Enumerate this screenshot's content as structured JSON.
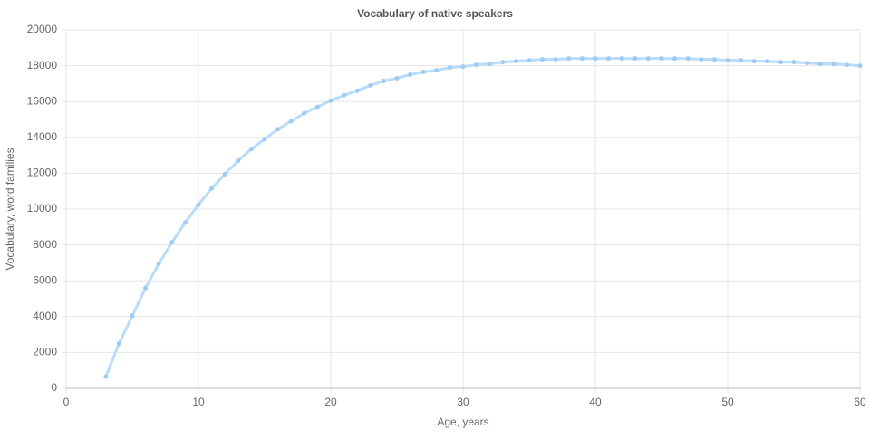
{
  "chart_data": {
    "type": "line",
    "title": "Vocabulary of native speakers",
    "x_label": "Age, years",
    "y_label": "Vocabulary, word families",
    "x": [
      3,
      4,
      5,
      6,
      7,
      8,
      9,
      10,
      11,
      12,
      13,
      14,
      15,
      16,
      17,
      18,
      19,
      20,
      21,
      22,
      23,
      24,
      25,
      26,
      27,
      28,
      29,
      30,
      31,
      32,
      33,
      34,
      35,
      36,
      37,
      38,
      39,
      40,
      41,
      42,
      43,
      44,
      45,
      46,
      47,
      48,
      49,
      50,
      51,
      52,
      53,
      54,
      55,
      56,
      57,
      58,
      59,
      60
    ],
    "series": [
      {
        "name": "Vocabulary",
        "color": "#b9dcfa",
        "values": [
          650,
          2500,
          4050,
          5600,
          6950,
          8150,
          9250,
          10250,
          11150,
          11950,
          12700,
          13350,
          13900,
          14450,
          14900,
          15350,
          15700,
          16050,
          16350,
          16600,
          16900,
          17150,
          17300,
          17500,
          17650,
          17750,
          17900,
          17950,
          18050,
          18100,
          18200,
          18250,
          18300,
          18350,
          18350,
          18400,
          18400,
          18400,
          18400,
          18400,
          18400,
          18400,
          18400,
          18400,
          18400,
          18350,
          18350,
          18300,
          18300,
          18250,
          18250,
          18200,
          18200,
          18150,
          18100,
          18100,
          18050,
          18000
        ]
      }
    ],
    "xlim": [
      0,
      60
    ],
    "xticks": [
      0,
      10,
      20,
      30,
      40,
      50,
      60
    ],
    "ylim": [
      0,
      20000
    ],
    "yticks": [
      0,
      2000,
      4000,
      6000,
      8000,
      10000,
      12000,
      14000,
      16000,
      18000,
      20000
    ],
    "grid": true
  }
}
